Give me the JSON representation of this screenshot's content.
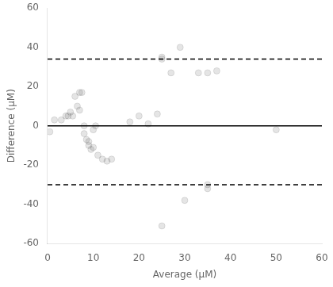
{
  "chart_data": {
    "type": "scatter",
    "xlabel": "Average (μM)",
    "ylabel": "Difference (μM)",
    "x": [
      0.5,
      1.5,
      3,
      4,
      4.5,
      5,
      5.5,
      6,
      6.5,
      7,
      7,
      7.5,
      8,
      8,
      8.5,
      9,
      9,
      9.5,
      10,
      10,
      10.5,
      11,
      12,
      13,
      14,
      18,
      20,
      22,
      24,
      25,
      25,
      27,
      29,
      33,
      35,
      37,
      50,
      25,
      30,
      35,
      35
    ],
    "values": [
      -3,
      3,
      3,
      5,
      5,
      7,
      5,
      15,
      10,
      17,
      8,
      17,
      0,
      -4,
      -7,
      -8,
      -10,
      -12,
      -11,
      -2,
      0,
      -15,
      -17,
      -18,
      -17,
      2,
      5,
      1,
      6,
      35,
      34,
      27,
      40,
      27,
      27,
      28,
      -2,
      -51,
      -38,
      -30,
      -32
    ],
    "hlines": [
      {
        "value": 0,
        "color": "black",
        "line_style": "solid"
      },
      {
        "value": 34,
        "color": "black",
        "line_style": "dashed"
      },
      {
        "value": -30,
        "color": "black",
        "line_style": "dashed"
      }
    ],
    "xlim": [
      0,
      60
    ],
    "ylim": [
      -60,
      60
    ],
    "xticks": [
      0,
      10,
      20,
      30,
      40,
      50,
      60
    ],
    "yticks": [
      -60,
      -40,
      -20,
      0,
      20,
      40,
      60
    ],
    "grid": false
  }
}
